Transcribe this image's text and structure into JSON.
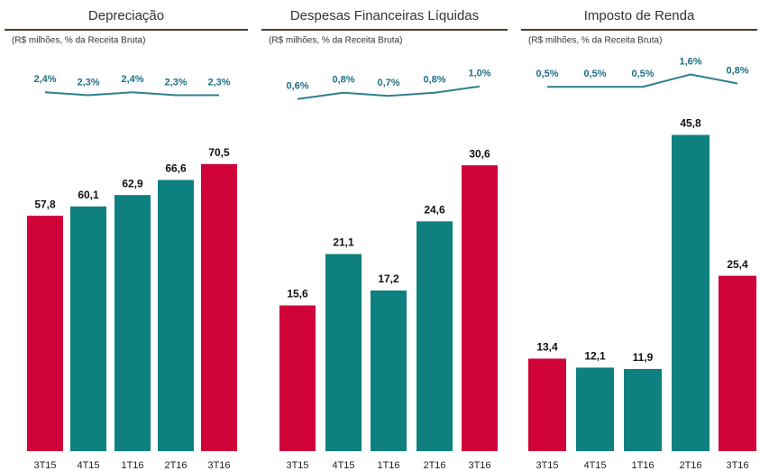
{
  "chart_data": [
    {
      "type": "bar",
      "title": "Depreciação",
      "subtitle": "(R$ milhões, % da Receita Bruta)",
      "categories": [
        "3T15",
        "4T15",
        "1T16",
        "2T16",
        "3T16"
      ],
      "values": [
        57.8,
        60.1,
        62.9,
        66.6,
        70.5
      ],
      "value_labels": [
        "57,8",
        "60,1",
        "62,9",
        "66,6",
        "70,5"
      ],
      "colors": [
        "#d0023a",
        "#0e8080",
        "#0e8080",
        "#0e8080",
        "#d0023a"
      ],
      "ylim": [
        0,
        78
      ],
      "line": {
        "type": "line",
        "values": [
          2.4,
          2.3,
          2.4,
          2.3,
          2.3
        ],
        "value_labels": [
          "2,4%",
          "2,3%",
          "2,4%",
          "2,3%",
          "2,3%"
        ],
        "color": "#2e7f8e",
        "ylim": [
          2.0,
          3.1
        ]
      }
    },
    {
      "type": "bar",
      "title": "Despesas Financeiras Líquidas",
      "subtitle": "(R$ milhões, % da Receita Bruta)",
      "categories": [
        "3T15",
        "4T15",
        "1T16",
        "2T16",
        "3T16"
      ],
      "values": [
        15.6,
        21.1,
        17.2,
        24.6,
        30.6
      ],
      "value_labels": [
        "15,6",
        "21,1",
        "17,2",
        "24,6",
        "30,6"
      ],
      "colors": [
        "#d0023a",
        "#0e8080",
        "#0e8080",
        "#0e8080",
        "#d0023a"
      ],
      "ylim": [
        0,
        34
      ],
      "line": {
        "type": "line",
        "values": [
          0.6,
          0.8,
          0.7,
          0.8,
          1.0
        ],
        "value_labels": [
          "0,6%",
          "0,8%",
          "0,7%",
          "0,8%",
          "1,0%"
        ],
        "color": "#2e7f8e",
        "ylim": [
          0.45,
          1.45
        ]
      }
    },
    {
      "type": "bar",
      "title": "Imposto de Renda",
      "subtitle": "(R$ milhões, % da Receita Bruta)",
      "categories": [
        "3T15",
        "4T15",
        "1T16",
        "2T16",
        "3T16"
      ],
      "values": [
        13.4,
        12.1,
        11.9,
        45.8,
        25.4
      ],
      "value_labels": [
        "13,4",
        "12,1",
        "11,9",
        "45,8",
        "25,4"
      ],
      "colors": [
        "#d0023a",
        "#0e8080",
        "#0e8080",
        "#0e8080",
        "#d0023a"
      ],
      "ylim": [
        0,
        46
      ],
      "line": {
        "type": "line",
        "values": [
          0.5,
          0.5,
          0.5,
          1.6,
          0.8
        ],
        "value_labels": [
          "0,5%",
          "0,5%",
          "0,5%",
          "1,6%",
          "0,8%"
        ],
        "color": "#2e7f8e",
        "ylim": [
          -1.0,
          1.8
        ]
      }
    }
  ]
}
